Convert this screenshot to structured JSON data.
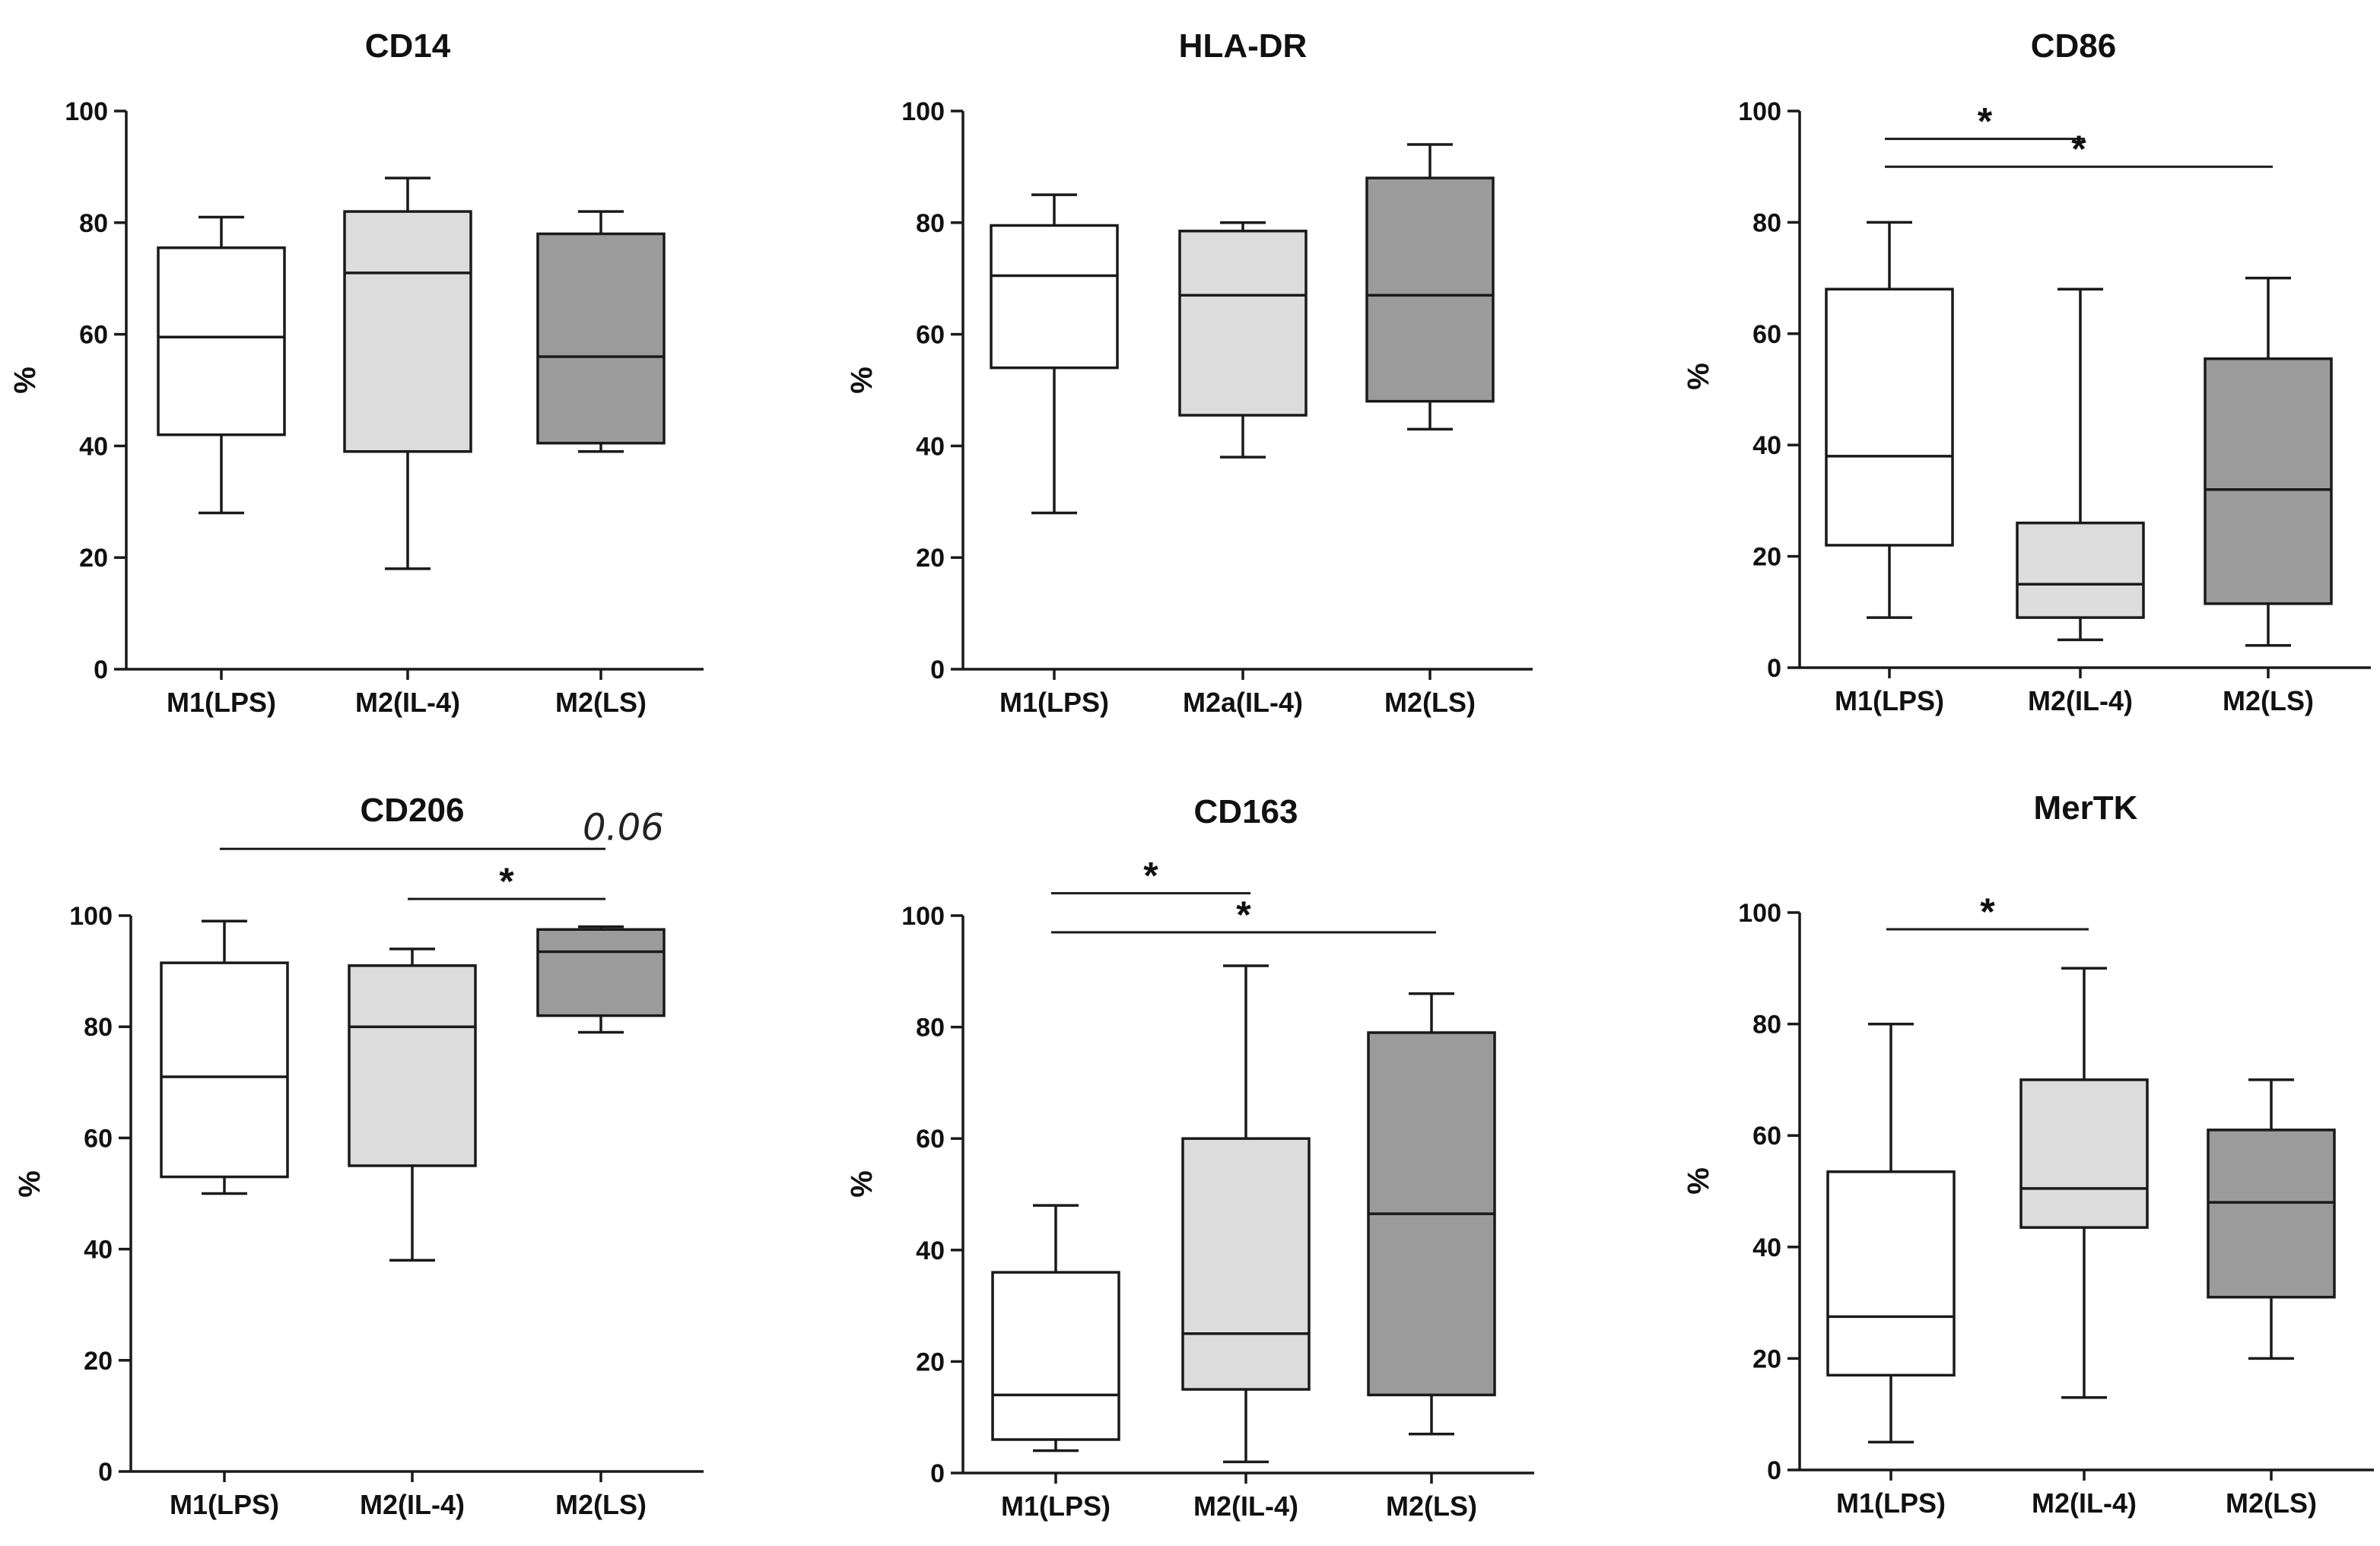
{
  "colors": {
    "white": "#ffffff",
    "light": "#dcdcdc",
    "dark": "#9b9b9b",
    "stroke": "#1a1a1a"
  },
  "chart_data": [
    {
      "type": "box",
      "title": "CD14",
      "ylabel": "%",
      "ylim": [
        0,
        100
      ],
      "yticks": [
        "0",
        "20",
        "40",
        "60",
        "80",
        "100"
      ],
      "categories": [
        "M1(LPS)",
        "M2(IL-4)",
        "M2(LS)"
      ],
      "fills": [
        "white",
        "light",
        "dark"
      ],
      "boxes": [
        {
          "min": 28,
          "q1": 42,
          "median": 59.5,
          "q3": 75.5,
          "max": 81
        },
        {
          "min": 18,
          "q1": 39,
          "median": 71,
          "q3": 82,
          "max": 88
        },
        {
          "min": 39,
          "q1": 40.5,
          "median": 56,
          "q3": 78,
          "max": 82
        }
      ],
      "annotations": []
    },
    {
      "type": "box",
      "title": "HLA-DR",
      "ylabel": "%",
      "ylim": [
        0,
        100
      ],
      "yticks": [
        "0",
        "20",
        "40",
        "60",
        "80",
        "100"
      ],
      "categories": [
        "M1(LPS)",
        "M2a(IL-4)",
        "M2(LS)"
      ],
      "fills": [
        "white",
        "light",
        "dark"
      ],
      "boxes": [
        {
          "min": 28,
          "q1": 54,
          "median": 70.5,
          "q3": 79.5,
          "max": 85
        },
        {
          "min": 38,
          "q1": 45.5,
          "median": 67,
          "q3": 78.5,
          "max": 80
        },
        {
          "min": 43,
          "q1": 48,
          "median": 67,
          "q3": 88,
          "max": 94
        }
      ],
      "annotations": []
    },
    {
      "type": "box",
      "title": "CD86",
      "ylabel": "%",
      "ylim": [
        0,
        100
      ],
      "yticks": [
        "0",
        "20",
        "40",
        "60",
        "80",
        "100"
      ],
      "categories": [
        "M1(LPS)",
        "M2(IL-4)",
        "M2(LS)"
      ],
      "fills": [
        "white",
        "light",
        "dark"
      ],
      "boxes": [
        {
          "min": 9,
          "q1": 22,
          "median": 38,
          "q3": 68,
          "max": 80
        },
        {
          "min": 5,
          "q1": 9,
          "median": 15,
          "q3": 26,
          "max": 68
        },
        {
          "min": 4,
          "q1": 11.5,
          "median": 32,
          "q3": 55.5,
          "max": 70
        }
      ],
      "annotations": [
        {
          "from": 0,
          "to": 1,
          "label": "*",
          "level": 95
        },
        {
          "from": 0,
          "to": 2,
          "label": "*",
          "level": 90
        }
      ]
    },
    {
      "type": "box",
      "title": "CD206",
      "ylabel": "%",
      "ylim": [
        0,
        100
      ],
      "yticks": [
        "0",
        "20",
        "40",
        "60",
        "80",
        "100"
      ],
      "categories": [
        "M1(LPS)",
        "M2(IL-4)",
        "M2(LS)"
      ],
      "fills": [
        "white",
        "light",
        "dark"
      ],
      "boxes": [
        {
          "min": 50,
          "q1": 53,
          "median": 71,
          "q3": 91.5,
          "max": 99
        },
        {
          "min": 38,
          "q1": 55,
          "median": 80,
          "q3": 91,
          "max": 94
        },
        {
          "min": 79,
          "q1": 82,
          "median": 93.5,
          "q3": 97.5,
          "max": 98
        }
      ],
      "annotations": [
        {
          "from": 0,
          "to": 2,
          "label": "0.06",
          "level": 112
        },
        {
          "from": 1,
          "to": 2,
          "label": "*",
          "level": 103
        }
      ]
    },
    {
      "type": "box",
      "title": "CD163",
      "ylabel": "%",
      "ylim": [
        0,
        100
      ],
      "yticks": [
        "0",
        "20",
        "40",
        "60",
        "80",
        "100"
      ],
      "categories": [
        "M1(LPS)",
        "M2(IL-4)",
        "M2(LS)"
      ],
      "fills": [
        "white",
        "light",
        "dark"
      ],
      "boxes": [
        {
          "min": 4,
          "q1": 6,
          "median": 14,
          "q3": 36,
          "max": 48
        },
        {
          "min": 2,
          "q1": 15,
          "median": 25,
          "q3": 60,
          "max": 91
        },
        {
          "min": 7,
          "q1": 14,
          "median": 46.5,
          "q3": 79,
          "max": 86
        }
      ],
      "annotations": [
        {
          "from": 0,
          "to": 1,
          "label": "*",
          "level": 104
        },
        {
          "from": 0,
          "to": 2,
          "label": "*",
          "level": 97
        }
      ]
    },
    {
      "type": "box",
      "title": "MerTK",
      "ylabel": "%",
      "ylim": [
        0,
        100
      ],
      "yticks": [
        "0",
        "20",
        "40",
        "60",
        "80",
        "100"
      ],
      "categories": [
        "M1(LPS)",
        "M2(IL-4)",
        "M2(LS)"
      ],
      "fills": [
        "white",
        "light",
        "dark"
      ],
      "boxes": [
        {
          "min": 5,
          "q1": 17,
          "median": 27.5,
          "q3": 53.5,
          "max": 80
        },
        {
          "min": 13,
          "q1": 43.5,
          "median": 50.5,
          "q3": 70,
          "max": 90
        },
        {
          "min": 20,
          "q1": 31,
          "median": 48,
          "q3": 61,
          "max": 70
        }
      ],
      "annotations": [
        {
          "from": 0,
          "to": 1,
          "label": "*",
          "level": 97
        }
      ]
    }
  ]
}
